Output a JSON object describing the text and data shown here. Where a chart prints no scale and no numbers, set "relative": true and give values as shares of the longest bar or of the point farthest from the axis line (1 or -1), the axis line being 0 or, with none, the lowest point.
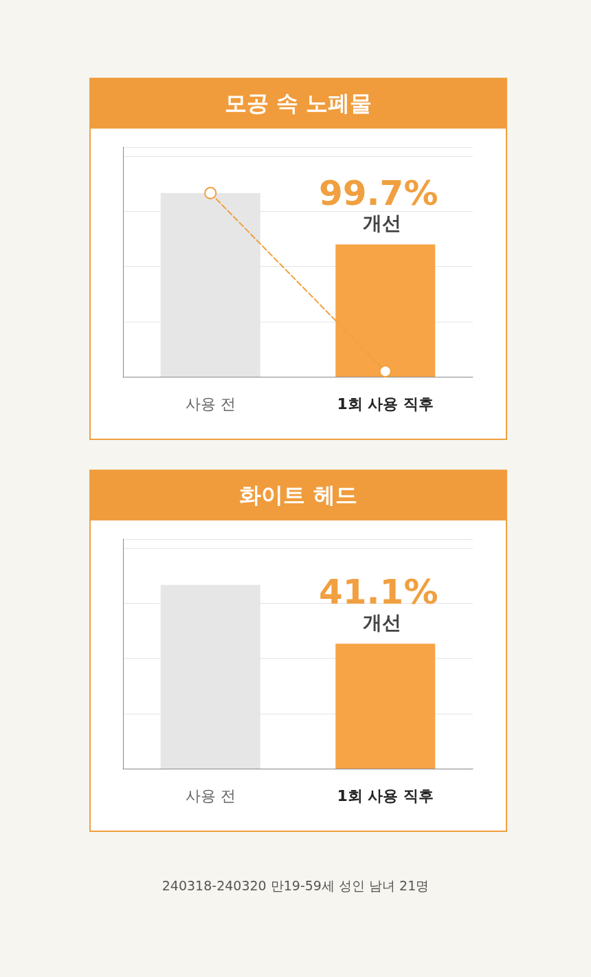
{
  "chart_data": [
    {
      "type": "bar",
      "title": "모공 속 노폐물",
      "relative": true,
      "grid": "y",
      "categories": [
        "사용 전",
        "1회 사용 직후"
      ],
      "series": [
        {
          "colors": [
            "#e6e6e6",
            "#f7a446"
          ],
          "values": [
            1,
            0.72
          ]
        },
        {
          "type": "line",
          "color": "#f0a040",
          "line_style": "dashed",
          "marker": "circle",
          "values": [
            1,
            0.03
          ]
        }
      ],
      "annotations": [
        "99.7%",
        "개선"
      ]
    },
    {
      "type": "bar",
      "title": "화이트 헤드",
      "relative": true,
      "grid": "y",
      "categories": [
        "사용 전",
        "1회 사용 직후"
      ],
      "series": [
        {
          "colors": [
            "#e6e6e6",
            "#f7a446"
          ],
          "values": [
            1,
            0.68
          ]
        }
      ],
      "annotations": [
        "41.1%",
        "개선",
        "240318-240320 만19-59세 성인 남녀 21명"
      ]
    }
  ]
}
